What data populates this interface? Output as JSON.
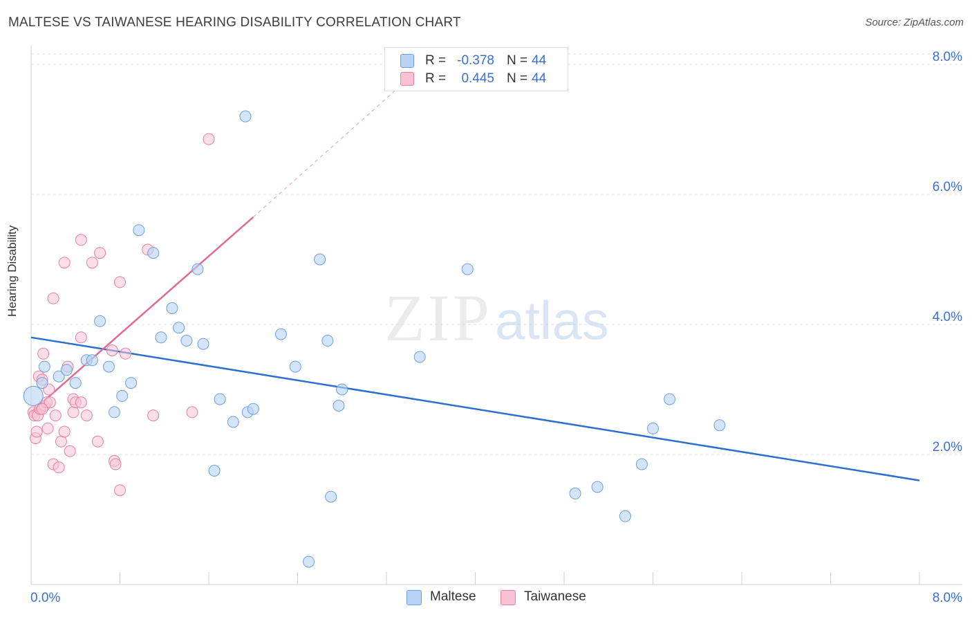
{
  "title": "MALTESE VS TAIWANESE HEARING DISABILITY CORRELATION CHART",
  "source": "Source: ZipAtlas.com",
  "watermark": {
    "zip": "ZIP",
    "atlas": "atlas"
  },
  "legend_top": [
    {
      "r_label": "R =",
      "r_value": "-0.378",
      "n_label": "N =",
      "n_value": "44"
    },
    {
      "r_label": "R =",
      "r_value": "0.445",
      "n_label": "N =",
      "n_value": "44"
    }
  ],
  "legend_bottom": [
    {
      "label": "Maltese"
    },
    {
      "label": "Taiwanese"
    }
  ],
  "colors": {
    "maltese_fill": "#b8d3f5",
    "maltese_stroke": "#6b9fe0",
    "maltese_line": "#2b6fd1",
    "taiwanese_fill": "#f7c3d3",
    "taiwanese_stroke": "#e67fa0",
    "taiwanese_line": "#e06a94",
    "tick_label": "#3b6fd0",
    "grid": "#e0e0e0"
  },
  "chart_data": {
    "type": "scatter",
    "title": "MALTESE VS TAIWANESE HEARING DISABILITY CORRELATION CHART",
    "xlabel": "",
    "ylabel": "Hearing Disability",
    "xlim": [
      0,
      8
    ],
    "ylim": [
      0,
      8
    ],
    "x_tick_labels": [
      "0.0%",
      "8.0%"
    ],
    "y_ticks": [
      2,
      4,
      6,
      8
    ],
    "y_tick_labels": [
      "2.0%",
      "4.0%",
      "6.0%",
      "8.0%"
    ],
    "grid": true,
    "legend_position": "top-center",
    "series": [
      {
        "name": "Maltese",
        "r": -0.378,
        "n": 44,
        "trend": {
          "x": [
            0,
            8
          ],
          "y": [
            3.8,
            1.6
          ]
        },
        "points": [
          [
            0.02,
            2.9
          ],
          [
            0.1,
            3.1
          ],
          [
            0.12,
            3.35
          ],
          [
            0.25,
            3.2
          ],
          [
            0.32,
            3.3
          ],
          [
            0.4,
            3.1
          ],
          [
            0.5,
            3.45
          ],
          [
            0.55,
            3.45
          ],
          [
            0.62,
            4.05
          ],
          [
            0.7,
            3.35
          ],
          [
            0.75,
            2.65
          ],
          [
            0.82,
            2.9
          ],
          [
            0.9,
            3.1
          ],
          [
            0.97,
            5.45
          ],
          [
            1.1,
            5.1
          ],
          [
            1.17,
            3.8
          ],
          [
            1.27,
            4.25
          ],
          [
            1.33,
            3.95
          ],
          [
            1.4,
            3.75
          ],
          [
            1.5,
            4.85
          ],
          [
            1.55,
            3.7
          ],
          [
            1.65,
            1.75
          ],
          [
            1.7,
            2.85
          ],
          [
            1.82,
            2.5
          ],
          [
            1.93,
            7.2
          ],
          [
            1.95,
            2.65
          ],
          [
            2.0,
            2.7
          ],
          [
            2.25,
            3.85
          ],
          [
            2.38,
            3.35
          ],
          [
            2.5,
            0.35
          ],
          [
            2.6,
            5.0
          ],
          [
            2.67,
            3.75
          ],
          [
            2.7,
            1.35
          ],
          [
            2.77,
            2.75
          ],
          [
            2.8,
            3.0
          ],
          [
            3.5,
            3.5
          ],
          [
            3.93,
            4.85
          ],
          [
            4.9,
            1.4
          ],
          [
            5.1,
            1.5
          ],
          [
            5.35,
            1.05
          ],
          [
            5.5,
            1.85
          ],
          [
            5.6,
            2.4
          ],
          [
            5.75,
            2.85
          ],
          [
            6.2,
            2.45
          ]
        ]
      },
      {
        "name": "Taiwanese",
        "r": 0.445,
        "n": 44,
        "trend": {
          "x": [
            0,
            2.0
          ],
          "y": [
            2.65,
            5.65
          ]
        },
        "trend_extension": {
          "x": [
            2.0,
            3.28
          ],
          "y": [
            5.65,
            7.6
          ]
        },
        "points": [
          [
            0.02,
            2.65
          ],
          [
            0.03,
            2.6
          ],
          [
            0.04,
            2.25
          ],
          [
            0.05,
            2.35
          ],
          [
            0.06,
            2.6
          ],
          [
            0.07,
            3.2
          ],
          [
            0.08,
            2.7
          ],
          [
            0.1,
            3.15
          ],
          [
            0.11,
            3.55
          ],
          [
            0.12,
            2.75
          ],
          [
            0.14,
            2.8
          ],
          [
            0.15,
            2.4
          ],
          [
            0.16,
            3.0
          ],
          [
            0.17,
            2.8
          ],
          [
            0.2,
            1.85
          ],
          [
            0.2,
            4.4
          ],
          [
            0.22,
            2.6
          ],
          [
            0.25,
            1.8
          ],
          [
            0.27,
            2.2
          ],
          [
            0.3,
            4.95
          ],
          [
            0.3,
            2.35
          ],
          [
            0.33,
            3.35
          ],
          [
            0.35,
            2.05
          ],
          [
            0.38,
            2.85
          ],
          [
            0.38,
            2.65
          ],
          [
            0.4,
            2.8
          ],
          [
            0.45,
            3.8
          ],
          [
            0.45,
            2.8
          ],
          [
            0.45,
            5.3
          ],
          [
            0.5,
            2.6
          ],
          [
            0.55,
            4.95
          ],
          [
            0.6,
            2.2
          ],
          [
            0.62,
            5.1
          ],
          [
            0.73,
            3.6
          ],
          [
            0.75,
            1.9
          ],
          [
            0.76,
            1.85
          ],
          [
            0.8,
            4.65
          ],
          [
            0.8,
            1.45
          ],
          [
            0.85,
            3.55
          ],
          [
            1.05,
            5.15
          ],
          [
            1.1,
            2.6
          ],
          [
            1.45,
            2.65
          ],
          [
            1.6,
            6.85
          ],
          [
            0.1,
            2.7
          ]
        ]
      }
    ]
  }
}
